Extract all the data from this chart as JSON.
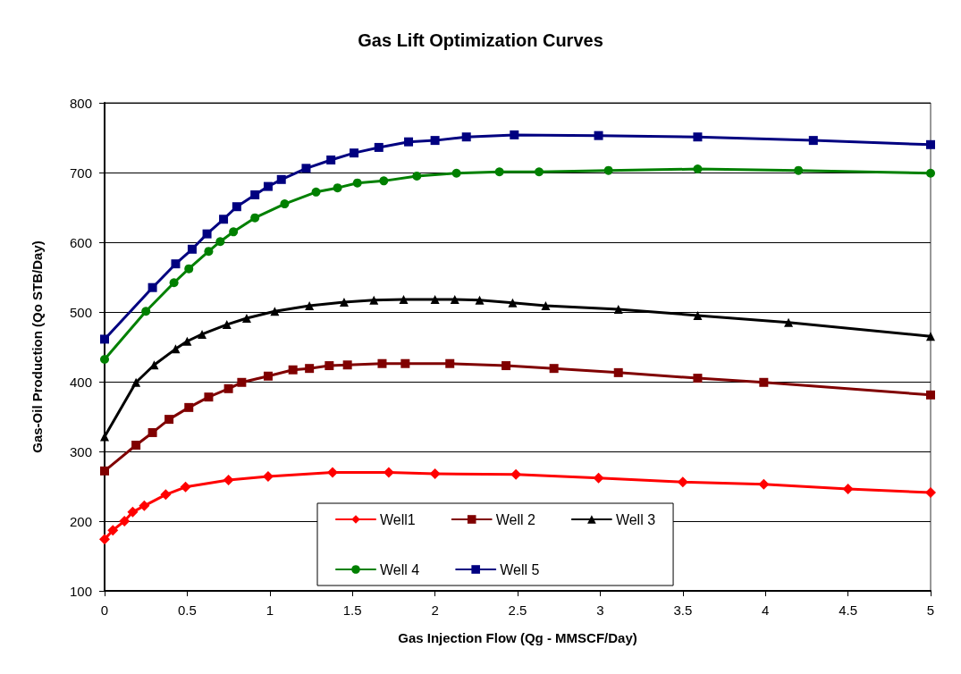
{
  "chart_data": {
    "type": "line",
    "title": "Gas Lift Optimization Curves",
    "xlabel": "Gas Injection Flow (Qg - MMSCF/Day)",
    "ylabel": "Gas-Oil Production (Qo STB/Day)",
    "xlim": [
      0,
      5
    ],
    "xticks": [
      0,
      0.5,
      1,
      1.5,
      2,
      2.5,
      3,
      3.5,
      4,
      4.5,
      5
    ],
    "ylim": [
      100,
      800
    ],
    "yticks": [
      100,
      200,
      300,
      400,
      500,
      600,
      700,
      800
    ],
    "grid": "y",
    "legend": "bottom",
    "series": [
      {
        "name": "Well1",
        "color": "#ff0000",
        "marker": "diamond",
        "x": [
          0,
          0.05,
          0.12,
          0.17,
          0.24,
          0.37,
          0.49,
          0.75,
          0.99,
          1.38,
          1.72,
          2.0,
          2.49,
          2.99,
          3.5,
          3.99,
          4.5,
          5
        ],
        "values": [
          174,
          187,
          200,
          213,
          222,
          238,
          249,
          259,
          264,
          270,
          270,
          268,
          267,
          262,
          256,
          253,
          246,
          241
        ]
      },
      {
        "name": "Well 2",
        "color": "#800000",
        "marker": "square",
        "x": [
          0,
          0.19,
          0.29,
          0.39,
          0.51,
          0.63,
          0.75,
          0.83,
          0.99,
          1.14,
          1.24,
          1.36,
          1.47,
          1.68,
          1.82,
          2.09,
          2.43,
          2.72,
          3.11,
          3.59,
          3.99,
          5
        ],
        "values": [
          272,
          309,
          327,
          346,
          363,
          378,
          390,
          399,
          408,
          417,
          419,
          423,
          424,
          426,
          426,
          426,
          423,
          419,
          413,
          405,
          399,
          381
        ]
      },
      {
        "name": "Well 3",
        "color": "#000000",
        "marker": "triangle",
        "x": [
          0,
          0.19,
          0.3,
          0.43,
          0.5,
          0.59,
          0.74,
          0.86,
          1.03,
          1.24,
          1.45,
          1.63,
          1.81,
          2.0,
          2.12,
          2.27,
          2.47,
          2.67,
          3.11,
          3.59,
          4.14,
          5
        ],
        "values": [
          321,
          399,
          424,
          447,
          458,
          468,
          482,
          491,
          501,
          509,
          514,
          517,
          518,
          518,
          518,
          517,
          513,
          509,
          504,
          495,
          485,
          465
        ]
      },
      {
        "name": "Well 4",
        "color": "#008000",
        "marker": "circle",
        "x": [
          0,
          0.25,
          0.42,
          0.51,
          0.63,
          0.7,
          0.78,
          0.91,
          1.09,
          1.28,
          1.41,
          1.53,
          1.69,
          1.89,
          2.13,
          2.39,
          2.63,
          3.05,
          3.59,
          4.2,
          5
        ],
        "values": [
          432,
          501,
          542,
          562,
          587,
          601,
          615,
          635,
          655,
          672,
          678,
          685,
          688,
          695,
          699,
          701,
          701,
          703,
          705,
          703,
          699
        ]
      },
      {
        "name": "Well 5",
        "color": "#000080",
        "marker": "square",
        "x": [
          0,
          0.29,
          0.43,
          0.53,
          0.62,
          0.72,
          0.8,
          0.91,
          0.99,
          1.07,
          1.22,
          1.37,
          1.51,
          1.66,
          1.84,
          2.0,
          2.19,
          2.48,
          2.99,
          3.59,
          4.29,
          5
        ],
        "values": [
          461,
          535,
          569,
          590,
          612,
          633,
          651,
          668,
          680,
          690,
          706,
          718,
          728,
          736,
          744,
          746,
          751,
          754,
          753,
          751,
          746,
          740
        ]
      }
    ]
  }
}
